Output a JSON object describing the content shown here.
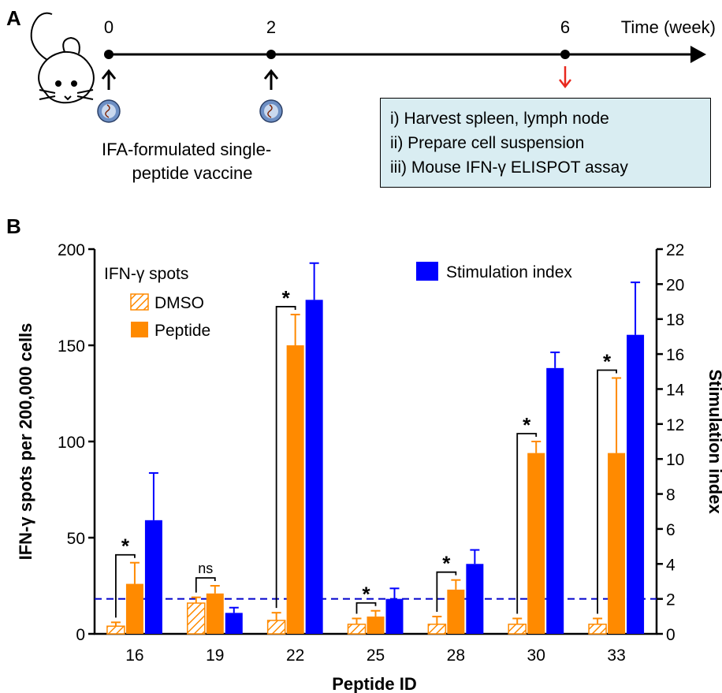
{
  "panel_a": {
    "label": "A",
    "timeline_unit_label": "Time (week)",
    "timepoints": [
      "0",
      "2",
      "6"
    ],
    "vaccine_caption": [
      "IFA-formulated single-",
      "peptide vaccine"
    ],
    "procedure_steps": [
      "i) Harvest spleen, lymph node",
      "ii) Prepare cell suspension",
      "iii) Mouse IFN-γ ELISPOT assay"
    ]
  },
  "panel_b": {
    "label": "B"
  },
  "colors": {
    "dmso": "#ff8a00",
    "peptide": "#ff8a00",
    "stimulation_index": "#0000ff",
    "threshold_line": "#0000cc",
    "procedure_box": "#d9edf2",
    "arrow_sampling": "#e8281e"
  },
  "chart_data": {
    "type": "bar",
    "xlabel": "Peptide ID",
    "ylabel_left": "IFN-γ spots per 200,000 cells",
    "ylabel_right": "Stimulation index",
    "categories": [
      "16",
      "19",
      "22",
      "25",
      "28",
      "30",
      "33"
    ],
    "ylim_left": [
      0,
      200
    ],
    "yticks_left": [
      "0",
      "50",
      "100",
      "150",
      "200"
    ],
    "ylim_right": [
      0,
      22
    ],
    "yticks_right": [
      "0",
      "2",
      "4",
      "6",
      "8",
      "10",
      "12",
      "14",
      "16",
      "18",
      "20",
      "22"
    ],
    "legend_group_title": "IFN-γ spots",
    "series": [
      {
        "name": "DMSO",
        "axis": "left",
        "pattern": "hatched",
        "values": [
          4,
          16,
          7,
          5,
          5,
          5,
          5
        ],
        "errors": [
          2,
          3,
          4,
          3,
          4,
          3,
          3
        ]
      },
      {
        "name": "Peptide",
        "axis": "left",
        "pattern": "solid",
        "values": [
          26,
          21,
          150,
          9,
          23,
          94,
          94
        ],
        "errors": [
          11,
          4,
          16,
          3,
          5,
          6,
          39
        ]
      },
      {
        "name": "Stimulation index",
        "axis": "right",
        "pattern": "solid",
        "values": [
          6.5,
          1.2,
          19.1,
          2.0,
          4.0,
          15.2,
          17.1
        ],
        "errors": [
          2.7,
          0.3,
          2.1,
          0.6,
          0.8,
          0.9,
          3.0
        ]
      }
    ],
    "threshold_line_right_value": 2,
    "significance": [
      "*",
      "ns",
      "*",
      "*",
      "*",
      "*",
      "*"
    ],
    "legend_placement": [
      "top-left",
      "top-right"
    ]
  }
}
